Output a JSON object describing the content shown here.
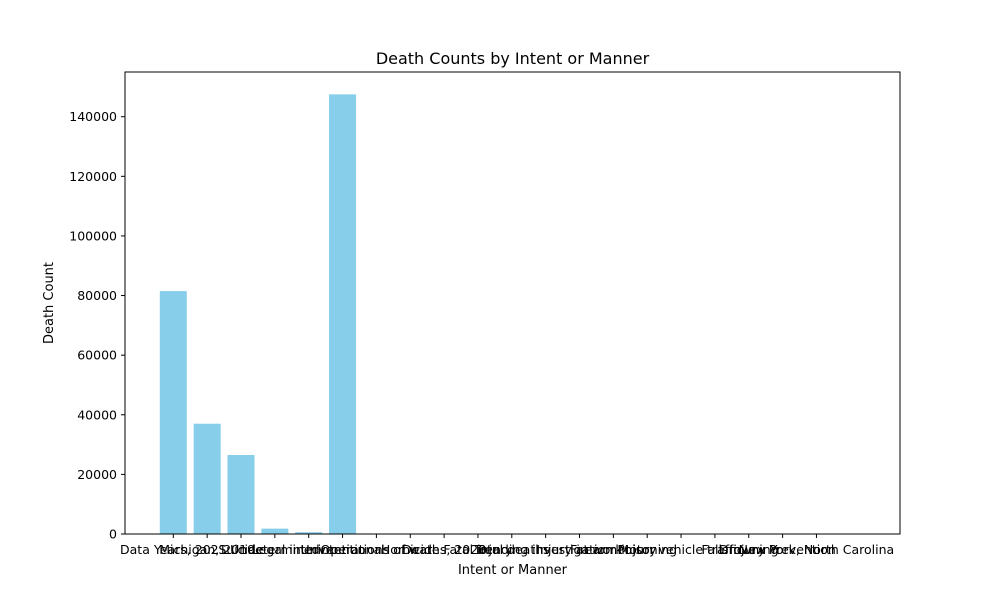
{
  "chart_data": {
    "type": "bar",
    "title": "Death Counts by Intent or Manner",
    "xlabel": "Intent or Manner",
    "ylabel": "Death Count",
    "ylim": [
      0,
      155000
    ],
    "yticks": [
      0,
      20000,
      40000,
      60000,
      80000,
      100000,
      120000,
      140000
    ],
    "grid": false,
    "bar_color": "#87ceeb",
    "categories": [
      "Data Years, 2021",
      "Michigan, 2019",
      "Suicide",
      "Undetermined",
      "Legal intervention",
      "Unintentional",
      "Operations of war",
      "Homicide",
      "Deaths, 2020",
      "Fatal injury",
      "Total deaths",
      "Pending investigation",
      "Injury at work",
      "Firearm injury",
      "Poisoning",
      "Motor vehicle traffic",
      "Falls",
      "Drowning",
      "Injury Prevention",
      "New York, North Carolina"
    ],
    "values": [
      81500,
      37000,
      26500,
      1800,
      600,
      147500,
      0,
      0,
      0,
      0,
      0,
      0,
      0,
      0,
      0,
      0,
      0,
      0,
      0,
      0
    ]
  }
}
